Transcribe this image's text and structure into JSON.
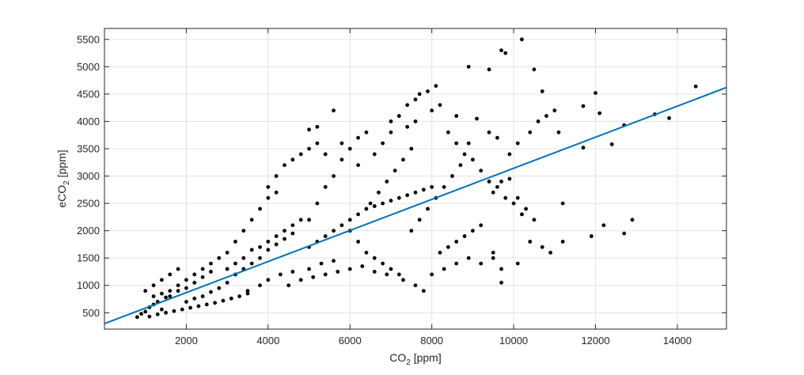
{
  "chart_data": {
    "type": "scatter",
    "xlabel_base": "CO",
    "xlabel_sub": "2",
    "xlabel_unit": " [ppm]",
    "ylabel_prefix": "eCO",
    "ylabel_sub": "2",
    "ylabel_unit": " [ppm]",
    "xlim": [
      0,
      15200
    ],
    "ylim": [
      200,
      5700
    ],
    "xticks": [
      2000,
      4000,
      6000,
      8000,
      10000,
      12000,
      14000
    ],
    "yticks": [
      500,
      1000,
      1500,
      2000,
      2500,
      3000,
      3500,
      4000,
      4500,
      5000,
      5500
    ],
    "grid": true,
    "marker_color": "#000000",
    "fit_line_color": "#0072BD",
    "fit_line": {
      "x": [
        0,
        15200
      ],
      "y": [
        300,
        4620
      ]
    },
    "series": [
      {
        "points": [
          [
            800,
            420
          ],
          [
            900,
            480
          ],
          [
            1000,
            520
          ],
          [
            1100,
            600
          ],
          [
            1200,
            650
          ],
          [
            1300,
            700
          ],
          [
            1400,
            560
          ],
          [
            1500,
            780
          ],
          [
            1000,
            900
          ],
          [
            1200,
            1000
          ],
          [
            1400,
            1100
          ],
          [
            1600,
            1200
          ],
          [
            1800,
            1300
          ],
          [
            1600,
            800
          ],
          [
            1800,
            900
          ],
          [
            2000,
            950
          ],
          [
            2200,
            1050
          ],
          [
            2400,
            1150
          ],
          [
            2600,
            1250
          ],
          [
            2000,
            700
          ],
          [
            2200,
            760
          ],
          [
            2400,
            800
          ],
          [
            2600,
            880
          ],
          [
            2800,
            950
          ],
          [
            3000,
            1050
          ],
          [
            3200,
            1200
          ],
          [
            3400,
            1300
          ],
          [
            3600,
            1400
          ],
          [
            3800,
            1500
          ],
          [
            4000,
            1650
          ],
          [
            4200,
            1750
          ],
          [
            4400,
            1850
          ],
          [
            4600,
            1950
          ],
          [
            3000,
            1600
          ],
          [
            3200,
            1800
          ],
          [
            3400,
            2000
          ],
          [
            3600,
            2200
          ],
          [
            3800,
            2400
          ],
          [
            4000,
            2600
          ],
          [
            4200,
            2700
          ],
          [
            3500,
            900
          ],
          [
            3800,
            1000
          ],
          [
            4000,
            1100
          ],
          [
            4300,
            1200
          ],
          [
            4600,
            1250
          ],
          [
            5000,
            1300
          ],
          [
            5300,
            1400
          ],
          [
            5600,
            1450
          ],
          [
            5000,
            2200
          ],
          [
            5200,
            2500
          ],
          [
            5400,
            2800
          ],
          [
            5600,
            3000
          ],
          [
            5800,
            3300
          ],
          [
            6000,
            3500
          ],
          [
            6200,
            3700
          ],
          [
            6400,
            3800
          ],
          [
            5000,
            3850
          ],
          [
            5200,
            3900
          ],
          [
            5600,
            4200
          ],
          [
            6000,
            2000
          ],
          [
            6200,
            1800
          ],
          [
            6400,
            1600
          ],
          [
            6600,
            1500
          ],
          [
            6800,
            1400
          ],
          [
            7000,
            1300
          ],
          [
            7200,
            1200
          ],
          [
            6500,
            2500
          ],
          [
            6700,
            2700
          ],
          [
            6900,
            2900
          ],
          [
            7100,
            3100
          ],
          [
            7300,
            3300
          ],
          [
            7500,
            3500
          ],
          [
            7000,
            4000
          ],
          [
            7200,
            4100
          ],
          [
            7400,
            4300
          ],
          [
            7600,
            4400
          ],
          [
            7700,
            4500
          ],
          [
            7900,
            4550
          ],
          [
            8100,
            4650
          ],
          [
            7800,
            900
          ],
          [
            7500,
            2000
          ],
          [
            7700,
            2200
          ],
          [
            7900,
            2400
          ],
          [
            8100,
            2600
          ],
          [
            8300,
            2800
          ],
          [
            8500,
            3000
          ],
          [
            8700,
            3200
          ],
          [
            8900,
            3600
          ],
          [
            8200,
            1600
          ],
          [
            8400,
            1700
          ],
          [
            8600,
            1800
          ],
          [
            8800,
            1900
          ],
          [
            9000,
            2000
          ],
          [
            9200,
            2100
          ],
          [
            8600,
            4100
          ],
          [
            8900,
            5000
          ],
          [
            9400,
            4950
          ],
          [
            9700,
            5300
          ],
          [
            9800,
            5250
          ],
          [
            10200,
            5500
          ],
          [
            10500,
            4950
          ],
          [
            10700,
            4550
          ],
          [
            9100,
            4050
          ],
          [
            9400,
            3800
          ],
          [
            9600,
            3700
          ],
          [
            9900,
            3400
          ],
          [
            10100,
            3600
          ],
          [
            10400,
            3800
          ],
          [
            10600,
            4000
          ],
          [
            10800,
            4100
          ],
          [
            11000,
            4200
          ],
          [
            11100,
            3800
          ],
          [
            9500,
            2700
          ],
          [
            9700,
            2900
          ],
          [
            9900,
            2950
          ],
          [
            10100,
            2600
          ],
          [
            10300,
            2400
          ],
          [
            10500,
            2200
          ],
          [
            10700,
            1700
          ],
          [
            10900,
            1600
          ],
          [
            9500,
            1600
          ],
          [
            9700,
            1050
          ],
          [
            10100,
            1400
          ],
          [
            10400,
            1800
          ],
          [
            11200,
            1800
          ],
          [
            11200,
            2500
          ],
          [
            11700,
            4280
          ],
          [
            12000,
            4520
          ],
          [
            12100,
            4150
          ],
          [
            12400,
            3580
          ],
          [
            11700,
            3520
          ],
          [
            11900,
            1900
          ],
          [
            12200,
            2100
          ],
          [
            12700,
            1950
          ],
          [
            12900,
            2200
          ],
          [
            12700,
            3930
          ],
          [
            13450,
            4130
          ],
          [
            13800,
            4060
          ],
          [
            14450,
            4640
          ],
          [
            1100,
            430
          ],
          [
            1300,
            470
          ],
          [
            1500,
            500
          ],
          [
            1700,
            530
          ],
          [
            1900,
            560
          ],
          [
            2100,
            590
          ],
          [
            2300,
            620
          ],
          [
            2500,
            650
          ],
          [
            2700,
            680
          ],
          [
            2900,
            720
          ],
          [
            3100,
            760
          ],
          [
            3300,
            800
          ],
          [
            3500,
            850
          ],
          [
            1200,
            800
          ],
          [
            1400,
            850
          ],
          [
            1600,
            900
          ],
          [
            1800,
            1000
          ],
          [
            2000,
            1100
          ],
          [
            2200,
            1200
          ],
          [
            2400,
            1300
          ],
          [
            2600,
            1400
          ],
          [
            2800,
            1500
          ],
          [
            3000,
            1300
          ],
          [
            3200,
            1400
          ],
          [
            3400,
            1500
          ],
          [
            3600,
            1650
          ],
          [
            3800,
            1700
          ],
          [
            4000,
            1800
          ],
          [
            4200,
            1900
          ],
          [
            4400,
            2000
          ],
          [
            4600,
            2100
          ],
          [
            4800,
            2200
          ],
          [
            5000,
            1700
          ],
          [
            5200,
            1800
          ],
          [
            5400,
            1900
          ],
          [
            5600,
            2000
          ],
          [
            5800,
            2100
          ],
          [
            6000,
            2200
          ],
          [
            6200,
            2300
          ],
          [
            6400,
            2400
          ],
          [
            6600,
            2450
          ],
          [
            6800,
            2500
          ],
          [
            7000,
            2550
          ],
          [
            7200,
            2600
          ],
          [
            7400,
            2650
          ],
          [
            7600,
            2700
          ],
          [
            7800,
            2750
          ],
          [
            8000,
            2800
          ],
          [
            4000,
            2800
          ],
          [
            4200,
            3000
          ],
          [
            4400,
            3200
          ],
          [
            4600,
            3300
          ],
          [
            4800,
            3400
          ],
          [
            5000,
            3500
          ],
          [
            5200,
            3600
          ],
          [
            5400,
            3400
          ],
          [
            5800,
            3600
          ],
          [
            6200,
            3200
          ],
          [
            6600,
            3400
          ],
          [
            6800,
            3600
          ],
          [
            7000,
            3800
          ],
          [
            7400,
            3900
          ],
          [
            7600,
            4000
          ],
          [
            8000,
            4200
          ],
          [
            8200,
            4300
          ],
          [
            8400,
            3800
          ],
          [
            8600,
            3600
          ],
          [
            8800,
            3400
          ],
          [
            9000,
            3300
          ],
          [
            9200,
            3100
          ],
          [
            9400,
            2900
          ],
          [
            9600,
            2800
          ],
          [
            9800,
            2600
          ],
          [
            10000,
            2500
          ],
          [
            10200,
            2300
          ],
          [
            4500,
            1000
          ],
          [
            4800,
            1100
          ],
          [
            5100,
            1150
          ],
          [
            5400,
            1200
          ],
          [
            5700,
            1250
          ],
          [
            6000,
            1300
          ],
          [
            6300,
            1350
          ],
          [
            6600,
            1250
          ],
          [
            6900,
            1200
          ],
          [
            7300,
            1100
          ],
          [
            7600,
            1000
          ],
          [
            8000,
            1200
          ],
          [
            8300,
            1300
          ],
          [
            8600,
            1400
          ],
          [
            8900,
            1500
          ],
          [
            9200,
            1400
          ],
          [
            9500,
            1500
          ],
          [
            9700,
            1300
          ]
        ]
      }
    ]
  }
}
